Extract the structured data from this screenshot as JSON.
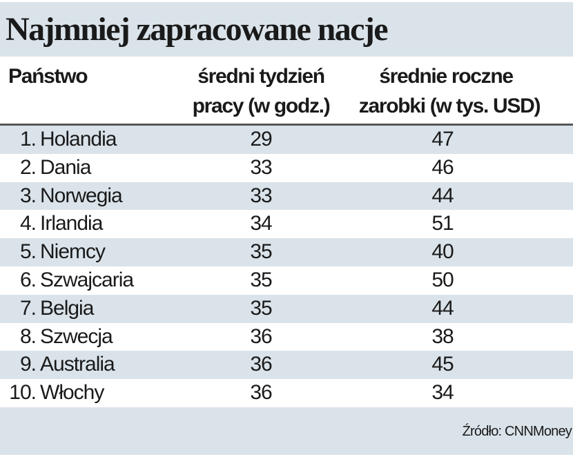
{
  "title": "Najmniej zapracowane nacje",
  "headers": {
    "country": "Państwo",
    "hours_line1": "średni tydzień",
    "hours_line2": "pracy (w godz.)",
    "earnings_line1": "średnie roczne",
    "earnings_line2": "zarobki (w tys. USD)"
  },
  "rows": [
    {
      "rank": "1.",
      "country": "Holandia",
      "hours": "29",
      "earnings": "47"
    },
    {
      "rank": "2.",
      "country": "Dania",
      "hours": "33",
      "earnings": "46"
    },
    {
      "rank": "3.",
      "country": "Norwegia",
      "hours": "33",
      "earnings": "44"
    },
    {
      "rank": "4.",
      "country": "Irlandia",
      "hours": "34",
      "earnings": "51"
    },
    {
      "rank": "5.",
      "country": "Niemcy",
      "hours": "35",
      "earnings": "40"
    },
    {
      "rank": "6.",
      "country": "Szwajcaria",
      "hours": "35",
      "earnings": "50"
    },
    {
      "rank": "7.",
      "country": "Belgia",
      "hours": "35",
      "earnings": "44"
    },
    {
      "rank": "8.",
      "country": "Szwecja",
      "hours": "36",
      "earnings": "38"
    },
    {
      "rank": "9.",
      "country": "Australia",
      "hours": "36",
      "earnings": "45"
    },
    {
      "rank": "10.",
      "country": "Włochy",
      "hours": "36",
      "earnings": "34"
    }
  ],
  "source": "Źródło: CNNMoney",
  "colors": {
    "band": "#dae3ea",
    "rule": "#555555"
  }
}
